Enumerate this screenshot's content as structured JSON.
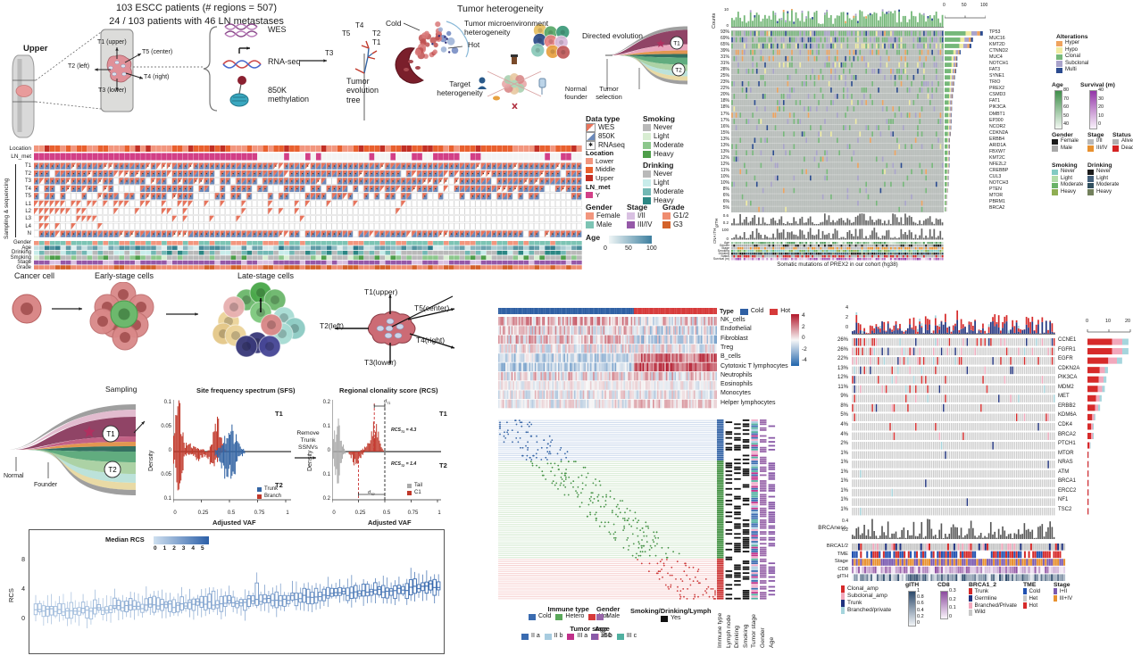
{
  "panelA": {
    "title1": "103 ESCC patients (# regions = 507)",
    "title2": "24 / 103 patients with 46 LN metastases",
    "upper": "Upper",
    "t1": "T1 (upper)",
    "t5": "T5 (center)",
    "t2": "T2 (left)",
    "t4": "T4 (right)",
    "t3": "T3 (lower)",
    "wes": "WES",
    "rnaseq": "RNA-seq",
    "meth": "850K methylation",
    "tree": "Tumor evolution tree",
    "tip_t4": "T4",
    "tip_t5": "T5",
    "tip_t2": "T2",
    "tip_t1": "T1",
    "tip_t3": "T3"
  },
  "panelB": {
    "title": "Tumor heterogeneity",
    "cold": "Cold",
    "hot": "Hot",
    "tme": "Tumor microenvironment heterogeneity",
    "directed": "Directed evolution",
    "target": "Target heterogeneity",
    "normal1": "Normal",
    "normal2": "founder",
    "tumor1": "Tumor",
    "tumor2": "selection",
    "t1": "T1",
    "t2": "T2"
  },
  "legendBlock": {
    "data_type": {
      "title": "Data type",
      "items": [
        [
          "WES",
          "#e8745c"
        ],
        [
          "850K",
          "#6a89bb"
        ],
        [
          "RNAseq",
          "*"
        ]
      ]
    },
    "location": {
      "title": "Location",
      "items": [
        [
          "Lower",
          "#f2967e"
        ],
        [
          "Middle",
          "#e9602e"
        ],
        [
          "Upper",
          "#c22f24"
        ]
      ]
    },
    "ln_met": {
      "title": "LN_met",
      "items": [
        [
          "Y",
          "#d23f87"
        ]
      ]
    },
    "gender": {
      "title": "Gender",
      "items": [
        [
          "Female",
          "#f2967e"
        ],
        [
          "Male",
          "#7cc4b4"
        ]
      ]
    },
    "age": {
      "title": "Age",
      "ticks": [
        "0",
        "50",
        "100"
      ],
      "c0": "#f0f6f6",
      "c1": "#3d7f9f"
    },
    "smoking": {
      "title": "Smoking",
      "items": [
        [
          "Never",
          "#b9b9b9"
        ],
        [
          "Light",
          "#d8edd2"
        ],
        [
          "Moderate",
          "#8cc78c"
        ],
        [
          "Heavy",
          "#4e9e4a"
        ]
      ]
    },
    "drinking": {
      "title": "Drinking",
      "items": [
        [
          "Never",
          "#b9b9b9"
        ],
        [
          "Light",
          "#c8ecea"
        ],
        [
          "Moderate",
          "#72b8b4"
        ],
        [
          "Heavy",
          "#2c8784"
        ]
      ]
    },
    "stage": {
      "title": "Stage",
      "items": [
        [
          "I/II",
          "#d9c1e2"
        ],
        [
          "III/IV",
          "#9559a8"
        ]
      ]
    },
    "grade": {
      "title": "Grade",
      "items": [
        [
          "G1/2",
          "#ef8d70"
        ],
        [
          "G3",
          "#d4622a"
        ]
      ]
    }
  },
  "matrix": {
    "location": "Location",
    "ln_met": "LN_met",
    "side": "Sampling & sequencing",
    "rows": [
      "T1",
      "T2",
      "T3",
      "T4",
      "T5",
      "L1",
      "L2",
      "L3",
      "L4",
      "N"
    ],
    "anno": [
      "Gender",
      "Age",
      "Drinking",
      "Smoking",
      "Stage",
      "Grade"
    ],
    "n_cols": 103
  },
  "op1": {
    "counts": "Counts",
    "counts_ticks": [
      "10",
      "0"
    ],
    "bar_axis": [
      "0",
      "50",
      "100"
    ],
    "genes": [
      "TP53",
      "MUC16",
      "KMT2D",
      "CTNND2",
      "MUC4",
      "NOTCH1",
      "FAT3",
      "SYNE1",
      "TRIO",
      "PREX2",
      "CSMD3",
      "FAT1",
      "PIK3CA",
      "DMBT1",
      "EP300",
      "NCOR2",
      "CDKN2A",
      "ERBB4",
      "ARID1A",
      "FBXW7",
      "KMT2C",
      "NFE2L2",
      "CREBBP",
      "CUL3",
      "NOTCH3",
      "PTEN",
      "MTOR",
      "PBRM1",
      "BRCA2"
    ],
    "pcts": [
      "93%",
      "69%",
      "65%",
      "39%",
      "31%",
      "31%",
      "28%",
      "25%",
      "23%",
      "22%",
      "20%",
      "18%",
      "18%",
      "17%",
      "17%",
      "16%",
      "15%",
      "13%",
      "13%",
      "13%",
      "12%",
      "12%",
      "11%",
      "10%",
      "10%",
      "8%",
      "6%",
      "6%",
      "5%"
    ],
    "freqs": [
      93,
      69,
      65,
      39,
      31,
      31,
      28,
      25,
      23,
      22,
      20,
      18,
      18,
      17,
      17,
      16,
      15,
      13,
      13,
      13,
      12,
      12,
      11,
      10,
      10,
      8,
      6,
      6,
      5
    ],
    "gith_label": "gITH",
    "gith_ticks": [
      "0.6",
      "0.2"
    ],
    "cna_label": "CNA ITH",
    "cna_ticks": [
      "100",
      "0"
    ],
    "anno": [
      "Age",
      "Gender",
      "Stage",
      "Smoking",
      "Drinking",
      "Status",
      "Survival (m)"
    ],
    "caption": "Somatic mutations of PREX2 in our cohort (hg38)",
    "leg_alter": {
      "title": "Alterations",
      "items": [
        [
          "Hyper",
          "#efa35e"
        ],
        [
          "Hypo",
          "#f0eca2"
        ],
        [
          "Clonal",
          "#76b87a"
        ],
        [
          "Subclonal",
          "#a9a3cb"
        ],
        [
          "Multi",
          "#2b4b8f"
        ]
      ]
    },
    "leg_age": {
      "title": "Age",
      "ticks": [
        "80",
        "70",
        "60",
        "50",
        "40"
      ],
      "c1": "#3f8f4a",
      "c0": "#f2f8f2"
    },
    "leg_surv": {
      "title": "Survival (m)",
      "ticks": [
        "40",
        "30",
        "20",
        "10",
        "0"
      ],
      "c1": "#9335a8",
      "c0": "#faf2fb"
    },
    "leg_gender": {
      "title": "Gender",
      "items": [
        [
          "Female",
          "#1a1a1a"
        ],
        [
          "Male",
          "#a8a8a8"
        ]
      ]
    },
    "leg_stage": {
      "title": "Stage",
      "items": [
        [
          "I/II",
          "#b8b8b8"
        ],
        [
          "III/IV",
          "#e8912f"
        ]
      ]
    },
    "leg_status": {
      "title": "Status",
      "items": [
        [
          "Alive",
          "#b0b0b0"
        ],
        [
          "Dead",
          "#d42222"
        ]
      ]
    },
    "leg_smoking": {
      "title": "Smoking",
      "items": [
        [
          "Never",
          "#82cac2"
        ],
        [
          "Light",
          "#b2dca8"
        ],
        [
          "Moderate",
          "#6ab368"
        ],
        [
          "Heavy",
          "#8fae53"
        ]
      ]
    },
    "leg_drinking": {
      "title": "Drinking",
      "items": [
        [
          "Never",
          "#1a1a1a"
        ],
        [
          "Light",
          "#44607a"
        ],
        [
          "Moderate",
          "#32505f"
        ],
        [
          "Heavy",
          "#72805c"
        ]
      ]
    }
  },
  "panelC": {
    "cell1": "Cancer cell",
    "cell2": "Early-stage cells",
    "cell3": "Late-stage cells",
    "t_top": "T1(upper)",
    "t_center": "T5(center)",
    "t_left": "T2(left)",
    "t_right": "T4(right)",
    "t_bottom": "T3(lower)",
    "sampling": "Sampling",
    "normal": "Normal",
    "founder": "Founder",
    "t1": "T1",
    "t2": "T2",
    "sfs_title": "Site frequency spectrum (SFS)",
    "density": "Density",
    "sfs_yticks": [
      "0.1",
      "0.05",
      "0",
      "0.05",
      "0.1"
    ],
    "xticks": [
      "0",
      "0.25",
      "0.5",
      "0.75",
      "1"
    ],
    "xlabel": "Adjusted VAF",
    "trunk": "Trunk",
    "branch": "Branch",
    "remove": "Remove Trunk SSNVs",
    "rcs_title": "Regional clonality score (RCS)",
    "rcs_yticks": [
      "0.2",
      "0.1",
      "0",
      "0.1",
      "0.2"
    ],
    "rcs1": {
      "base": "RCS",
      "sub": "T1",
      "val": " = 4.3"
    },
    "rcs2": {
      "base": "RCS",
      "sub": "T2",
      "val": " = 1.4"
    },
    "d1": {
      "base": "d",
      "sub": "T1"
    },
    "d2": {
      "base": "d",
      "sub": "T2"
    },
    "tail": "Tail",
    "c1": "C1",
    "box_ylabel": "RCS",
    "box_yticks": [
      "8",
      "4",
      "0"
    ],
    "median_rcs": "Median RCS",
    "median_ticks": [
      "0",
      "1",
      "2",
      "3",
      "4",
      "5"
    ],
    "median_c0": "#cfe0f0",
    "median_c1": "#2b5fa8"
  },
  "panelD": {
    "type": "Type",
    "cold": "Cold",
    "hot": "Hot",
    "cold_color": "#2e5fa3",
    "hot_color": "#d63a3a",
    "rows": [
      "NK_cells",
      "Endothelial",
      "Fibroblast",
      "Treg",
      "B_cells",
      "Cytotoxic T lymphocytes",
      "Neutrophils",
      "Eosinophils",
      "Monocytes",
      "Helper lymphocytes"
    ],
    "scale": [
      "4",
      "2",
      "0",
      "-2",
      "-4"
    ],
    "cols": [
      "Immune type",
      "Lymph node",
      "Drinking",
      "Smoking",
      "Tumor stage",
      "Gender",
      "Age"
    ],
    "leg_immune": {
      "title": "Immune type",
      "items": [
        [
          "Cold",
          "#3a6bb0"
        ],
        [
          "Hetero",
          "#5aa85a"
        ],
        [
          "Hot",
          "#d63a3a"
        ]
      ]
    },
    "leg_gender": {
      "title": "Gender",
      "items": [
        [
          "Male",
          "#9966aa"
        ]
      ]
    },
    "leg_sdl": {
      "title": "Smoking/Drinking/Lymph",
      "items": [
        [
          "Yes",
          "#111111"
        ]
      ]
    },
    "leg_stage": {
      "title": "Tumor stage",
      "items": [
        [
          "II a",
          "#3a6bb0"
        ],
        [
          "II b",
          "#a8cce0"
        ],
        [
          "III a",
          "#c0308a"
        ],
        [
          "III b",
          "#f0a8c8"
        ],
        [
          "III c",
          "#50b0a0"
        ]
      ]
    },
    "leg_age": {
      "title": "Age",
      "items": [
        [
          "≥50",
          "#8a5aa8"
        ]
      ]
    }
  },
  "op2": {
    "top_ticks": [
      "4",
      "2",
      "0"
    ],
    "bar_axis": [
      "0",
      "10",
      "20"
    ],
    "genes": [
      "CCNE1",
      "FGFR1",
      "EGFR",
      "CDKN2A",
      "PIK3CA",
      "MDM2",
      "MET",
      "ERBB2",
      "KDM6A",
      "CDK4",
      "BRCA2",
      "PTCH1",
      "MTOR",
      "NRAS",
      "ATM",
      "BRCA1",
      "ERCC2",
      "NF1",
      "TSC2"
    ],
    "pcts": [
      "26%",
      "26%",
      "22%",
      "13%",
      "12%",
      "11%",
      "9%",
      "8%",
      "5%",
      "4%",
      "4%",
      "2%",
      "1%",
      "1%",
      "1%",
      "1%",
      "1%",
      "1%",
      "1%"
    ],
    "freqs": [
      26,
      26,
      22,
      13,
      12,
      11,
      9,
      8,
      5,
      4,
      4,
      2,
      1,
      1,
      1,
      1,
      1,
      1,
      1
    ],
    "brcaness": "BRCAness",
    "brca_ticks": [
      "0.4",
      "0.2"
    ],
    "anno": [
      "BRCA1/2",
      "TME",
      "Stage",
      "CD8",
      "gITH"
    ],
    "leg_alter": {
      "items": [
        [
          "Clonal_amp",
          "#d62a2a"
        ],
        [
          "Subclonal_amp",
          "#f2a8bc"
        ],
        [
          "Trunk",
          "#20337f"
        ],
        [
          "Branched/private",
          "#a5d5dd"
        ]
      ]
    },
    "leg_gith": {
      "title": "gITH",
      "ticks": [
        "1",
        "0.8",
        "0.6",
        "0.4",
        "0.2",
        "0"
      ],
      "c1": "#2d4a6b",
      "c0": "#f2f5f8"
    },
    "leg_cd8": {
      "title": "CD8",
      "ticks": [
        "0.3",
        "0.2",
        "0.1",
        "0"
      ],
      "c1": "#8b4a9e",
      "c0": "#faf4fb"
    },
    "leg_brca": {
      "title": "BRCA1_2",
      "items": [
        [
          "Trunk",
          "#d62a2a"
        ],
        [
          "Germline",
          "#20337f"
        ],
        [
          "Branched/Private",
          "#f2a8bc"
        ],
        [
          "Wild",
          "#c8c8c8"
        ]
      ]
    },
    "leg_tme": {
      "title": "TME",
      "items": [
        [
          "Cold",
          "#2050b0"
        ],
        [
          "Het",
          "#c8c8c8"
        ],
        [
          "Hot",
          "#d62a2a"
        ]
      ]
    },
    "leg_stage": {
      "title": "Stage",
      "items": [
        [
          "I+II",
          "#7a5ab0"
        ],
        [
          "III+IV",
          "#e8912f"
        ]
      ]
    }
  },
  "palette": {
    "wes": "#e8745c",
    "k850": "#6a89bb",
    "magenta": "#d23f87",
    "loc_lower": "#f2967e",
    "loc_middle": "#e9602e",
    "loc_upper": "#c22f24",
    "female": "#f2967e",
    "male": "#7cc4b4",
    "stage12": "#d9c1e2",
    "stage34": "#9559a8",
    "g12": "#ef8d70",
    "g3": "#d4622a",
    "op1_bg": "#babfbc",
    "alt_hyper": "#efa35e",
    "alt_hypo": "#f0eca2",
    "alt_clonal": "#76b87a",
    "alt_sub": "#a9a3cb",
    "alt_multi": "#2b4b8f",
    "op2_bg": "#cdcdcd",
    "amp_clonal": "#d62a2a",
    "amp_sub": "#f2a8bc",
    "trunk": "#20337f",
    "branched": "#a5d5dd",
    "trunk_blue": "#3465a4",
    "branch_red": "#c0392b",
    "tail_gray": "#aaaaaa",
    "heat_pos": "#b2182b",
    "heat_neg": "#2166ac",
    "heat_mid": "#f7f7f7"
  }
}
